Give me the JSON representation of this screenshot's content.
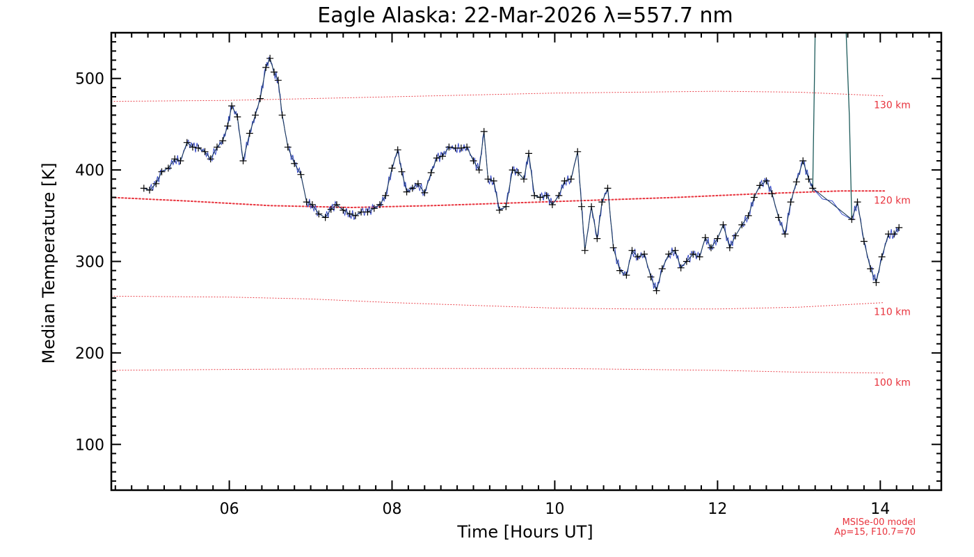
{
  "chart_data": {
    "type": "line",
    "title": "Eagle Alaska: 22-Mar-2026 λ=557.7 nm",
    "xlabel": "Time [Hours UT]",
    "ylabel": "Median Temperature [K]",
    "xlim": [
      4.55,
      14.75
    ],
    "ylim": [
      50,
      550
    ],
    "xticks": [
      6,
      8,
      10,
      12,
      14
    ],
    "xtick_labels": [
      "06",
      "08",
      "10",
      "12",
      "14"
    ],
    "yticks": [
      100,
      200,
      300,
      400,
      500
    ],
    "ytick_labels": [
      "100",
      "200",
      "300",
      "400",
      "500"
    ],
    "colors": {
      "data_line": "#2b3fc6",
      "markers": "#000000",
      "model": "#e8323c",
      "axes": "#000000"
    },
    "series": [
      {
        "x": [
          4.95,
          5.02,
          5.1,
          5.17,
          5.25,
          5.33,
          5.4,
          5.48,
          5.55,
          5.62,
          5.7,
          5.77,
          5.85,
          5.92,
          5.98,
          6.03,
          6.1,
          6.17,
          6.25,
          6.32,
          6.38,
          6.45,
          6.5,
          6.55,
          6.6,
          6.65,
          6.72,
          6.8,
          6.88,
          6.95,
          7.02,
          7.1,
          7.18,
          7.25,
          7.32,
          7.4,
          7.48,
          7.55,
          7.62,
          7.7,
          7.78,
          7.85,
          7.92,
          8.0,
          8.07,
          8.12,
          8.18,
          8.25,
          8.32,
          8.4,
          8.48,
          8.55,
          8.62,
          8.7,
          8.78,
          8.85,
          8.92,
          9.0,
          9.07,
          9.13,
          9.18,
          9.25,
          9.32,
          9.4,
          9.48,
          9.55,
          9.62,
          9.68,
          9.75,
          9.82,
          9.9,
          9.97,
          10.05,
          10.12,
          10.2,
          10.28,
          10.33,
          10.37,
          10.45,
          10.52,
          10.58,
          10.65,
          10.72,
          10.8,
          10.88,
          10.95,
          11.02,
          11.1,
          11.18,
          11.25,
          11.32,
          11.4,
          11.48,
          11.55,
          11.62,
          11.7,
          11.78,
          11.85,
          11.92,
          12.0,
          12.07,
          12.15,
          12.22,
          12.3,
          12.38,
          12.45,
          12.52,
          12.6,
          12.67,
          12.75,
          12.83,
          12.9,
          12.97,
          13.05,
          13.12,
          13.17,
          13.65,
          13.72,
          13.8,
          13.88,
          13.95,
          14.02,
          14.1,
          14.17,
          14.23
        ],
        "y": [
          380,
          378,
          385,
          398,
          402,
          412,
          410,
          430,
          425,
          424,
          420,
          412,
          425,
          432,
          448,
          470,
          458,
          410,
          440,
          460,
          478,
          512,
          522,
          507,
          498,
          460,
          425,
          407,
          395,
          365,
          362,
          352,
          348,
          357,
          362,
          356,
          352,
          350,
          354,
          354,
          358,
          362,
          372,
          402,
          422,
          398,
          376,
          380,
          385,
          375,
          397,
          413,
          415,
          425,
          424,
          424,
          425,
          410,
          400,
          442,
          390,
          388,
          356,
          360,
          400,
          397,
          390,
          418,
          372,
          370,
          372,
          362,
          372,
          388,
          390,
          420,
          360,
          312,
          360,
          325,
          365,
          380,
          315,
          290,
          285,
          312,
          305,
          308,
          283,
          268,
          292,
          308,
          312,
          293,
          300,
          308,
          305,
          326,
          315,
          325,
          340,
          315,
          328,
          340,
          350,
          370,
          383,
          388,
          374,
          348,
          330,
          365,
          387,
          410,
          390,
          380,
          346,
          365,
          322,
          292,
          277,
          305,
          330,
          330,
          337
        ]
      }
    ],
    "spike": {
      "x": [
        13.17,
        13.2,
        13.58,
        13.62,
        13.65
      ],
      "y": [
        380,
        550,
        550,
        460,
        346
      ]
    },
    "model_curves": [
      {
        "label": "130 km",
        "x": [
          4.55,
          6,
          8,
          10,
          12,
          13,
          14.05
        ],
        "y": [
          475,
          476,
          480,
          484,
          486,
          485,
          481
        ]
      },
      {
        "label": "120 km",
        "x": [
          4.55,
          5.5,
          6.5,
          7.5,
          8.5,
          9.5,
          10.5,
          11.5,
          12.5,
          13.5,
          14.05
        ],
        "y": [
          370,
          366,
          361,
          359,
          361,
          364,
          367,
          370,
          374,
          377,
          377
        ]
      },
      {
        "label": "110 km",
        "x": [
          4.55,
          6,
          7,
          8,
          9,
          10,
          11,
          12,
          13,
          14.05
        ],
        "y": [
          262,
          261,
          259,
          255,
          252,
          249,
          248,
          248,
          250,
          255
        ]
      },
      {
        "label": "100 km",
        "x": [
          4.55,
          6,
          8,
          10,
          12,
          13,
          14.05
        ],
        "y": [
          181,
          182,
          183,
          183,
          181,
          179,
          178
        ]
      }
    ],
    "model_note": [
      "MSISe-00 model",
      "Ap=15, F10.7=70"
    ],
    "grid": false,
    "legend": "none"
  }
}
